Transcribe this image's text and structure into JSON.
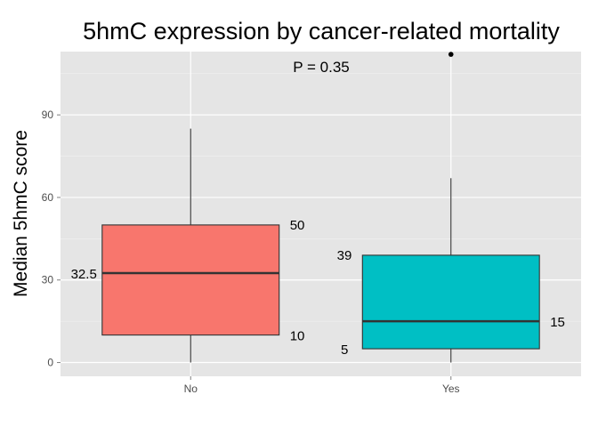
{
  "chart_data": {
    "type": "box",
    "title": "5hmC expression by cancer-related mortality",
    "xlabel": "",
    "ylabel": "Median 5hmC score",
    "ylim": [
      -5,
      113
    ],
    "y_ticks": [
      0,
      30,
      60,
      90
    ],
    "y_tick_labels": [
      "0",
      "30",
      "60",
      "90"
    ],
    "categories": [
      "No",
      "Yes"
    ],
    "grid": true,
    "annotation": "P = 0.35",
    "boxes": [
      {
        "category": "No",
        "whisker_low": 0,
        "q1": 10,
        "median": 32.5,
        "q3": 50,
        "whisker_high": 85,
        "outliers": [],
        "fill": "#F8766D",
        "labels": {
          "q1": "10",
          "median": "32.5",
          "q3": "50"
        }
      },
      {
        "category": "Yes",
        "whisker_low": 0,
        "q1": 5,
        "median": 15,
        "q3": 39,
        "whisker_high": 67,
        "outliers": [
          112
        ],
        "fill": "#00BFC4",
        "labels": {
          "q1": "5",
          "median": "15",
          "q3": "39"
        }
      }
    ]
  }
}
